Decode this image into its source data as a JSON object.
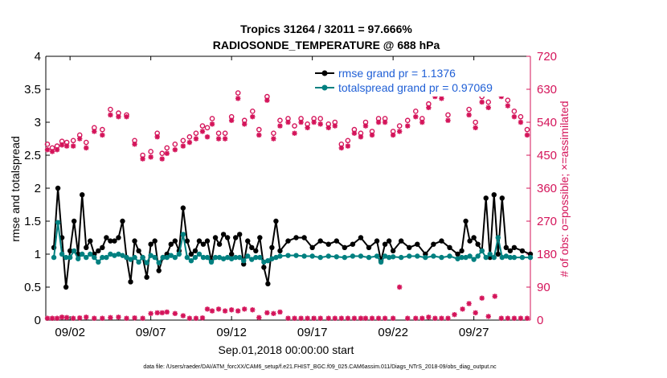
{
  "chart_data": {
    "type": "line",
    "title": "Tropics 31264 / 32011 = 97.666%",
    "subtitle": "RADIOSONDE_TEMPERATURE @ 688 hPa",
    "xlabel": "Sep.01,2018 00:00:00 start",
    "ylabel": "rmse and totalspread",
    "y2label": "# of obs: o=possible; ×=assimilated",
    "xlim": [
      0.5,
      30.5
    ],
    "ylim": [
      0,
      4
    ],
    "y2lim": [
      0,
      720
    ],
    "x_ticks": [
      {
        "x": 2,
        "label": "09/02"
      },
      {
        "x": 7,
        "label": "09/07"
      },
      {
        "x": 12,
        "label": "09/12"
      },
      {
        "x": 17,
        "label": "09/17"
      },
      {
        "x": 22,
        "label": "09/22"
      },
      {
        "x": 27,
        "label": "09/27"
      }
    ],
    "y_ticks": [
      {
        "v": 0,
        "label": "0"
      },
      {
        "v": 0.5,
        "label": "0.5"
      },
      {
        "v": 1,
        "label": "1"
      },
      {
        "v": 1.5,
        "label": "1.5"
      },
      {
        "v": 2,
        "label": "2"
      },
      {
        "v": 2.5,
        "label": "2.5"
      },
      {
        "v": 3,
        "label": "3"
      },
      {
        "v": 3.5,
        "label": "3.5"
      },
      {
        "v": 4,
        "label": "4"
      }
    ],
    "y2_ticks": [
      {
        "v": 0,
        "label": "0"
      },
      {
        "v": 90,
        "label": "90"
      },
      {
        "v": 180,
        "label": "180"
      },
      {
        "v": 270,
        "label": "270"
      },
      {
        "v": 360,
        "label": "360"
      },
      {
        "v": 450,
        "label": "450"
      },
      {
        "v": 540,
        "label": "540"
      },
      {
        "v": 630,
        "label": "630"
      },
      {
        "v": 720,
        "label": "720"
      }
    ],
    "series": [
      {
        "name": "rmse grand pr = 1.1376",
        "color": "#000000",
        "marker": "circle",
        "x": [
          1.0,
          1.25,
          1.5,
          1.75,
          2.0,
          2.25,
          2.5,
          2.75,
          3.0,
          3.25,
          3.5,
          3.75,
          4.0,
          4.25,
          4.5,
          4.75,
          5.0,
          5.25,
          5.5,
          5.75,
          6.0,
          6.25,
          6.5,
          6.75,
          7.0,
          7.25,
          7.5,
          7.75,
          8.0,
          8.25,
          8.5,
          8.75,
          9.0,
          9.25,
          9.5,
          9.75,
          10.0,
          10.25,
          10.5,
          10.75,
          11.0,
          11.25,
          11.5,
          11.75,
          12.0,
          12.25,
          12.5,
          12.75,
          13.0,
          13.25,
          13.5,
          13.75,
          14.0,
          14.25,
          14.5,
          14.75,
          15.0,
          15.5,
          16.0,
          16.5,
          17.0,
          17.5,
          18.0,
          18.5,
          19.0,
          19.5,
          20.0,
          20.5,
          21.0,
          21.25,
          21.5,
          21.75,
          22.0,
          22.5,
          23.0,
          23.5,
          24.0,
          24.5,
          25.0,
          25.5,
          26.0,
          26.25,
          26.5,
          26.75,
          27.0,
          27.25,
          27.5,
          27.75,
          28.0,
          28.25,
          28.5,
          28.75,
          29.0,
          29.25,
          29.5,
          30.0,
          30.5
        ],
        "values": [
          1.1,
          2.0,
          1.25,
          0.5,
          1.05,
          1.5,
          1.0,
          1.9,
          1.1,
          1.2,
          1.0,
          1.05,
          1.1,
          1.25,
          1.2,
          1.2,
          1.25,
          1.5,
          0.95,
          0.58,
          1.2,
          1.05,
          0.95,
          0.65,
          1.15,
          1.2,
          0.75,
          0.95,
          1.0,
          1.15,
          1.2,
          1.05,
          1.7,
          1.2,
          1.0,
          1.05,
          1.2,
          1.15,
          1.2,
          0.9,
          1.25,
          1.15,
          1.3,
          1.25,
          1.0,
          1.25,
          1.3,
          0.85,
          1.2,
          1.1,
          1.05,
          1.25,
          0.8,
          0.55,
          1.1,
          1.5,
          1.05,
          1.2,
          1.25,
          1.25,
          1.1,
          1.2,
          1.15,
          1.2,
          1.1,
          1.15,
          1.25,
          1.1,
          1.2,
          0.9,
          1.15,
          1.2,
          1.05,
          1.2,
          1.1,
          1.15,
          1.0,
          1.15,
          1.2,
          1.1,
          1.0,
          1.05,
          1.5,
          1.2,
          1.25,
          1.15,
          1.05,
          1.85,
          0.95,
          1.9,
          1.0,
          1.85,
          1.1,
          1.05,
          1.1,
          1.05,
          1.0
        ]
      },
      {
        "name": "totalspread grand pr = 0.97069",
        "color": "#008080",
        "marker": "circle",
        "x": [
          1.0,
          1.25,
          1.5,
          1.75,
          2.0,
          2.25,
          2.5,
          2.75,
          3.0,
          3.25,
          3.5,
          3.75,
          4.0,
          4.25,
          4.5,
          4.75,
          5.0,
          5.25,
          5.5,
          5.75,
          6.0,
          6.25,
          6.5,
          6.75,
          7.0,
          7.25,
          7.5,
          7.75,
          8.0,
          8.25,
          8.5,
          8.75,
          9.0,
          9.25,
          9.5,
          9.75,
          10.0,
          10.25,
          10.5,
          10.75,
          11.0,
          11.25,
          11.5,
          11.75,
          12.0,
          12.25,
          12.5,
          12.75,
          13.0,
          13.25,
          13.5,
          13.75,
          14.0,
          14.25,
          14.5,
          14.75,
          15.0,
          15.5,
          16.0,
          16.5,
          17.0,
          17.5,
          18.0,
          18.5,
          19.0,
          19.5,
          20.0,
          20.5,
          21.0,
          21.25,
          21.5,
          21.75,
          22.0,
          22.5,
          23.0,
          23.5,
          24.0,
          24.5,
          25.0,
          25.5,
          26.0,
          26.25,
          26.5,
          26.75,
          27.0,
          27.25,
          27.5,
          27.75,
          28.0,
          28.25,
          28.5,
          28.75,
          29.0,
          29.25,
          29.5,
          30.0,
          30.5
        ],
        "values": [
          0.95,
          1.48,
          1.0,
          0.95,
          0.95,
          1.05,
          0.93,
          1.0,
          0.95,
          1.0,
          0.95,
          0.88,
          0.95,
          0.95,
          1.0,
          0.98,
          1.0,
          0.98,
          0.95,
          0.92,
          0.95,
          0.88,
          0.95,
          0.87,
          0.98,
          0.95,
          0.87,
          0.95,
          0.95,
          0.98,
          0.95,
          1.0,
          1.3,
          0.95,
          0.9,
          0.95,
          1.0,
          0.95,
          0.95,
          0.88,
          0.95,
          0.95,
          0.93,
          0.95,
          0.93,
          0.95,
          0.95,
          0.9,
          0.97,
          0.92,
          0.95,
          0.95,
          0.88,
          0.9,
          0.93,
          0.95,
          0.97,
          0.98,
          0.98,
          0.97,
          0.97,
          0.95,
          0.97,
          0.96,
          0.95,
          0.97,
          0.97,
          0.95,
          0.97,
          0.88,
          0.97,
          0.95,
          0.96,
          0.95,
          0.97,
          0.97,
          0.95,
          0.97,
          0.95,
          0.97,
          0.93,
          0.95,
          0.95,
          0.97,
          0.92,
          0.97,
          1.05,
          0.95,
          1.0,
          0.95,
          1.25,
          0.95,
          0.97,
          0.95,
          0.95,
          0.95,
          0.95
        ]
      }
    ],
    "obs": {
      "color": "#d4145a",
      "possible_x": [
        0.6,
        0.9,
        1.2,
        1.5,
        1.8,
        2.2,
        2.6,
        3.0,
        3.5,
        4.0,
        4.5,
        5.0,
        5.5,
        6.0,
        6.5,
        7.0,
        7.4,
        7.7,
        8.0,
        8.5,
        9.0,
        9.4,
        9.8,
        10.2,
        10.5,
        10.8,
        11.2,
        11.6,
        12.0,
        12.4,
        12.8,
        13.3,
        13.7,
        14.2,
        14.6,
        15.0,
        15.5,
        15.9,
        16.3,
        16.7,
        17.1,
        17.5,
        18.0,
        18.4,
        18.8,
        19.2,
        19.6,
        20.0,
        20.3,
        20.7,
        21.1,
        21.5,
        22.0,
        22.4,
        22.9,
        23.4,
        23.8,
        24.2,
        24.6,
        25.0,
        25.4,
        25.8,
        26.3,
        26.7,
        27.1,
        27.5,
        27.9,
        28.3,
        28.7,
        29.1,
        29.5,
        29.9,
        30.3
      ],
      "possible": [
        480,
        470,
        475,
        488,
        485,
        490,
        505,
        485,
        525,
        520,
        575,
        565,
        560,
        490,
        450,
        460,
        510,
        455,
        470,
        480,
        490,
        500,
        510,
        530,
        525,
        550,
        510,
        510,
        555,
        620,
        545,
        570,
        520,
        610,
        510,
        545,
        550,
        530,
        550,
        535,
        550,
        550,
        535,
        540,
        480,
        490,
        520,
        510,
        540,
        515,
        550,
        550,
        515,
        530,
        545,
        570,
        550,
        590,
        625,
        620,
        560,
        640,
        630,
        575,
        540,
        610,
        595,
        640,
        630,
        600,
        570,
        555,
        520
      ],
      "assimilated_x": [
        0.6,
        0.9,
        1.2,
        1.5,
        1.8,
        2.2,
        2.6,
        3.0,
        3.5,
        4.0,
        4.5,
        5.0,
        5.5,
        6.0,
        6.5,
        7.0,
        7.4,
        7.7,
        8.0,
        8.5,
        9.0,
        9.4,
        9.8,
        10.2,
        10.5,
        10.8,
        11.2,
        11.6,
        12.0,
        12.4,
        12.8,
        13.3,
        13.7,
        14.2,
        14.6,
        15.0,
        15.5,
        15.9,
        16.3,
        16.7,
        17.1,
        17.5,
        18.0,
        18.4,
        18.8,
        19.2,
        19.6,
        20.0,
        20.3,
        20.7,
        21.1,
        21.5,
        22.0,
        22.4,
        22.9,
        23.4,
        23.8,
        24.2,
        24.6,
        25.0,
        25.4,
        25.8,
        26.3,
        26.7,
        27.1,
        27.5,
        27.9,
        28.3,
        28.7,
        29.1,
        29.5,
        29.9,
        30.3
      ],
      "assimilated": [
        465,
        460,
        465,
        478,
        475,
        475,
        495,
        470,
        515,
        505,
        560,
        555,
        555,
        480,
        440,
        445,
        500,
        440,
        455,
        465,
        475,
        485,
        495,
        515,
        500,
        535,
        495,
        495,
        545,
        605,
        535,
        555,
        505,
        600,
        495,
        530,
        540,
        510,
        540,
        525,
        540,
        535,
        525,
        530,
        470,
        475,
        510,
        500,
        530,
        505,
        540,
        540,
        505,
        515,
        530,
        555,
        540,
        580,
        610,
        605,
        545,
        620,
        620,
        560,
        525,
        595,
        580,
        625,
        610,
        585,
        555,
        540,
        505
      ],
      "low_x": [
        0.6,
        0.9,
        1.2,
        1.5,
        1.8,
        2.2,
        2.6,
        3.0,
        3.5,
        4.0,
        4.5,
        5.0,
        5.5,
        6.0,
        6.5,
        7.0,
        7.4,
        7.7,
        8.0,
        8.5,
        9.0,
        9.4,
        9.8,
        10.2,
        10.5,
        10.8,
        11.2,
        11.6,
        12.0,
        12.4,
        12.8,
        13.3,
        13.7,
        14.2,
        14.6,
        15.0,
        15.5,
        15.9,
        16.3,
        16.7,
        17.1,
        17.5,
        18.0,
        18.4,
        18.8,
        19.2,
        19.6,
        20.0,
        20.3,
        20.7,
        21.1,
        21.5,
        22.0,
        22.4,
        22.9,
        23.4,
        23.8,
        24.2,
        24.6,
        25.0,
        25.4,
        25.8,
        26.3,
        26.7,
        27.1,
        27.5,
        27.9,
        28.3,
        28.7,
        29.1,
        29.5,
        29.9,
        30.3
      ],
      "low": [
        5,
        5,
        5,
        8,
        7,
        5,
        6,
        8,
        5,
        5,
        7,
        8,
        5,
        6,
        5,
        18,
        20,
        20,
        22,
        18,
        12,
        5,
        5,
        6,
        30,
        25,
        30,
        25,
        28,
        25,
        30,
        28,
        7,
        20,
        18,
        22,
        5,
        5,
        5,
        5,
        5,
        5,
        5,
        5,
        5,
        5,
        5,
        5,
        5,
        5,
        5,
        5,
        5,
        90,
        5,
        5,
        5,
        8,
        5,
        5,
        5,
        15,
        30,
        45,
        20,
        60,
        10,
        65,
        5,
        5,
        5,
        5,
        5
      ]
    },
    "legend": [
      {
        "label": "rmse grand pr = 1.1376",
        "color": "#000000"
      },
      {
        "label": "totalspread grand pr = 0.97069",
        "color": "#008080"
      }
    ],
    "legend_position": "top-right",
    "footer": "data file: /Users/raeder/DAI/ATM_forcXX/CAM6_setup/f.e21.FHIST_BGC.f09_025.CAM6assim.011/Diags_NTrS_2018-09/obs_diag_output.nc"
  }
}
